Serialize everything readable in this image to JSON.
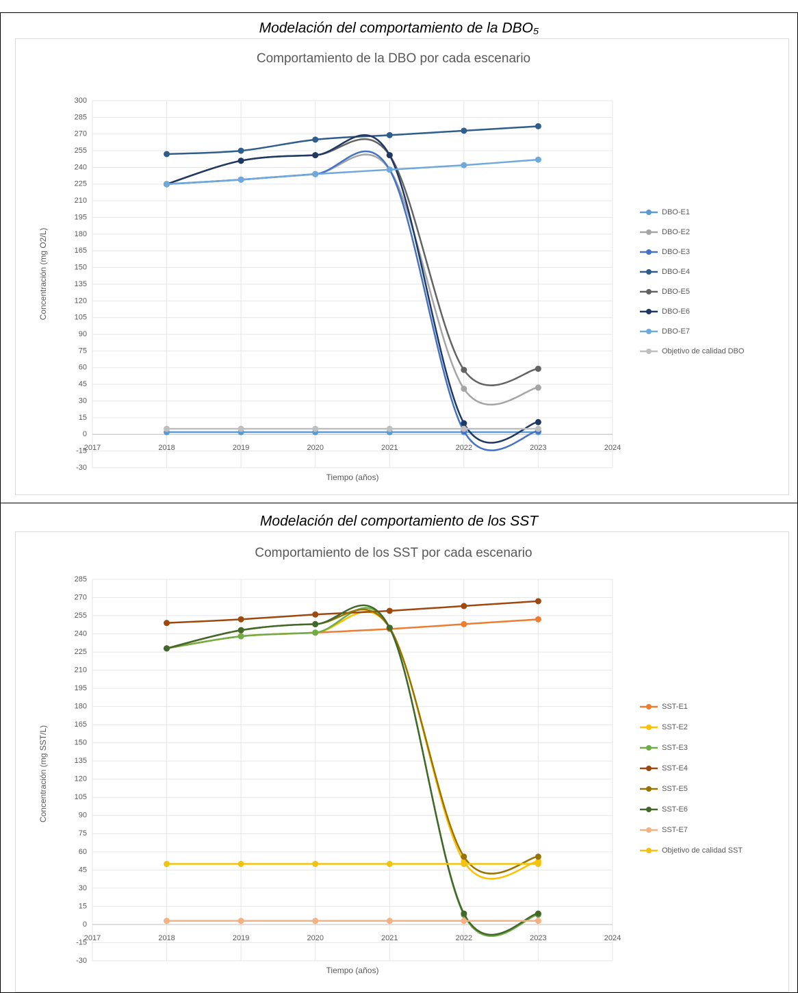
{
  "captions": [
    "Modelación del comportamiento de la DBO₅",
    "Modelación del comportamiento de los SST"
  ],
  "chart_data": [
    {
      "type": "line",
      "title": "Comportamiento de la DBO por cada escenario",
      "x_label": "Tiempo (años)",
      "y_label": "Concentración (mg O2/L)",
      "x": [
        2018,
        2019,
        2020,
        2021,
        2022,
        2023
      ],
      "xlim": [
        2017,
        2024
      ],
      "xticks": [
        2017,
        2018,
        2019,
        2020,
        2021,
        2022,
        2023,
        2024
      ],
      "ylim": [
        -30,
        300
      ],
      "yticks": [
        -30,
        -15,
        0,
        15,
        30,
        45,
        60,
        75,
        90,
        105,
        120,
        135,
        150,
        165,
        180,
        195,
        210,
        225,
        240,
        255,
        270,
        285,
        300
      ],
      "grid": true,
      "smooth": true,
      "legend": "right",
      "series": [
        {
          "name": "DBO-E1",
          "color": "#5B9BD5",
          "values": [
            2,
            2,
            2,
            2,
            2,
            2
          ]
        },
        {
          "name": "DBO-E2",
          "color": "#A5A5A5",
          "values": [
            225,
            229,
            234,
            238,
            41,
            42
          ]
        },
        {
          "name": "DBO-E3",
          "color": "#4472C4",
          "values": [
            225,
            229,
            234,
            238,
            3,
            3
          ]
        },
        {
          "name": "DBO-E4",
          "color": "#2F5D8C",
          "values": [
            252,
            255,
            265,
            269,
            273,
            277
          ]
        },
        {
          "name": "DBO-E5",
          "color": "#636363",
          "values": [
            225,
            246,
            251,
            251,
            58,
            59
          ]
        },
        {
          "name": "DBO-E6",
          "color": "#1F3864",
          "values": [
            225,
            246,
            251,
            251,
            10,
            11
          ]
        },
        {
          "name": "DBO-E7",
          "color": "#6FA8DC",
          "values": [
            225,
            229,
            234,
            238,
            242,
            247
          ]
        },
        {
          "name": "Objetivo de calidad DBO",
          "color": "#BFBFBF",
          "values": [
            5,
            5,
            5,
            5,
            5,
            5
          ]
        }
      ]
    },
    {
      "type": "line",
      "title": "Comportamiento de los SST por cada escenario",
      "x_label": "Tiempo (años)",
      "y_label": "Concentración (mg SST/L)",
      "x": [
        2018,
        2019,
        2020,
        2021,
        2022,
        2023
      ],
      "xlim": [
        2017,
        2024
      ],
      "xticks": [
        2017,
        2018,
        2019,
        2020,
        2021,
        2022,
        2023,
        2024
      ],
      "ylim": [
        -30,
        285
      ],
      "yticks": [
        -30,
        -15,
        0,
        15,
        30,
        45,
        60,
        75,
        90,
        105,
        120,
        135,
        150,
        165,
        180,
        195,
        210,
        225,
        240,
        255,
        270,
        285
      ],
      "grid": true,
      "smooth": true,
      "legend": "right",
      "series": [
        {
          "name": "SST-E1",
          "color": "#ED7D31",
          "values": [
            228,
            238,
            241,
            244,
            248,
            252
          ]
        },
        {
          "name": "SST-E2",
          "color": "#FFC000",
          "values": [
            228,
            238,
            241,
            245,
            52,
            52
          ]
        },
        {
          "name": "SST-E3",
          "color": "#70AD47",
          "values": [
            228,
            238,
            241,
            245,
            8,
            8
          ]
        },
        {
          "name": "SST-E4",
          "color": "#9E480E",
          "values": [
            249,
            252,
            256,
            259,
            263,
            267
          ]
        },
        {
          "name": "SST-E5",
          "color": "#997300",
          "values": [
            228,
            243,
            248,
            245,
            56,
            56
          ]
        },
        {
          "name": "SST-E6",
          "color": "#43682B",
          "values": [
            228,
            243,
            248,
            245,
            9,
            9
          ]
        },
        {
          "name": "SST-E7",
          "color": "#F4B183",
          "values": [
            3,
            3,
            3,
            3,
            3,
            3
          ]
        },
        {
          "name": "Objetivo de calidad SST",
          "color": "#F2C314",
          "values": [
            50,
            50,
            50,
            50,
            50,
            50
          ]
        }
      ]
    }
  ]
}
